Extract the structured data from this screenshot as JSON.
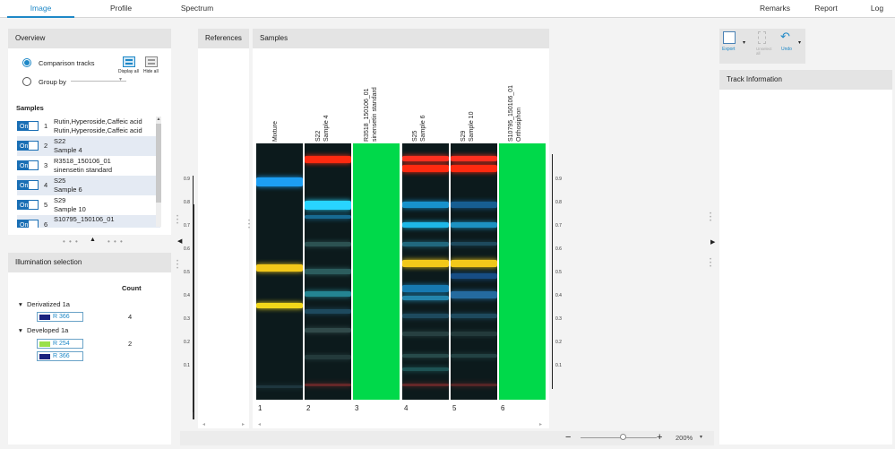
{
  "tabs": [
    "Image",
    "Profile",
    "Spectrum"
  ],
  "right_tabs": [
    "Remarks",
    "Report",
    "Log"
  ],
  "overview": {
    "title": "Overview",
    "comparison_tracks": "Comparison tracks",
    "group_by": "Group by",
    "display_all": "Display all",
    "hide_all": "Hide all",
    "samples_title": "Samples",
    "on_label": "On",
    "samples": [
      {
        "num": "1",
        "line1": "Rutin,Hyperoside,Caffeic acid",
        "line2": "Rutin,Hyperoside,Caffeic acid"
      },
      {
        "num": "2",
        "line1": "S22",
        "line2": "Sample 4"
      },
      {
        "num": "3",
        "line1": "R3518_150106_01",
        "line2": "sinensetin standard"
      },
      {
        "num": "4",
        "line1": "S25",
        "line2": "Sample 6"
      },
      {
        "num": "5",
        "line1": "S29",
        "line2": "Sample 10"
      },
      {
        "num": "6",
        "line1": "S10795_150106_01",
        "line2": ""
      }
    ]
  },
  "illumination": {
    "title": "Illumination selection",
    "count_header": "Count",
    "groups": [
      {
        "name": "Derivatized 1a",
        "count": "4",
        "items": [
          {
            "label": "R 366",
            "color": "#1a237e"
          }
        ]
      },
      {
        "name": "Developed 1a",
        "count": "2",
        "items": [
          {
            "label": "R 254",
            "color": "#9be04a"
          },
          {
            "label": "R 366",
            "color": "#1a237e"
          }
        ]
      }
    ]
  },
  "references_title": "References",
  "samples_title": "Samples",
  "lane_labels": [
    [
      "Mixture"
    ],
    [
      "S22",
      "Sample 4"
    ],
    [
      "R3518_150106_01",
      "sinensetin standard"
    ],
    [
      "S25",
      "Sample 6"
    ],
    [
      "S29",
      "Sample 10"
    ],
    [
      "S10795_150106_01",
      "Orthosiphon"
    ]
  ],
  "lane_numbers": [
    "1",
    "2",
    "3",
    "4",
    "5",
    "6"
  ],
  "rf_ticks": [
    "0.9",
    "0.8",
    "0.7",
    "0.6",
    "0.5",
    "0.4",
    "0.3",
    "0.2",
    "0.1"
  ],
  "toolbar": {
    "export": "Export",
    "unselect": "Unselect all",
    "undo": "Undo"
  },
  "track_info_title": "Track Information",
  "zoom": "200%",
  "colors": {
    "accent": "#1e88c7",
    "green_lane": "#00d94a"
  }
}
